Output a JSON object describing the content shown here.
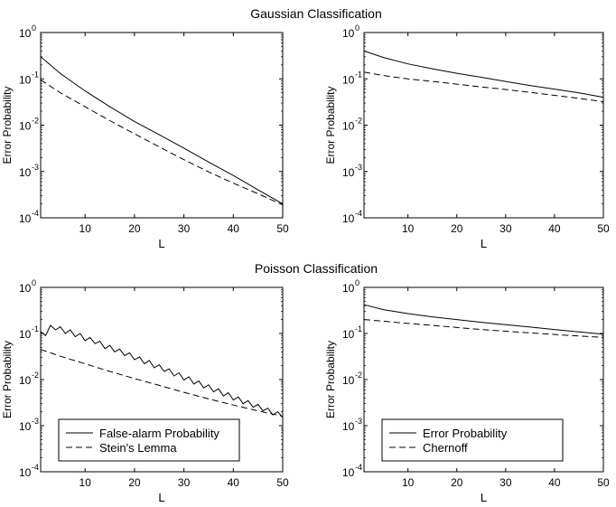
{
  "figure": {
    "titles": [
      "Gaussian Classification",
      "Poisson Classification"
    ]
  },
  "chart_data": [
    {
      "type": "line",
      "panel": "gaussian-left",
      "xlabel": "L",
      "ylabel": "Error Probability",
      "xlim": [
        1,
        50
      ],
      "ylim": [
        0.0001,
        1
      ],
      "yscale": "log",
      "xticks": [
        10,
        20,
        30,
        40,
        50
      ],
      "yticks": [
        {
          "base": "10",
          "exp": "0",
          "value": 1
        },
        {
          "base": "10",
          "exp": "-1",
          "value": 0.1
        },
        {
          "base": "10",
          "exp": "-2",
          "value": 0.01
        },
        {
          "base": "10",
          "exp": "-3",
          "value": 0.001
        },
        {
          "base": "10",
          "exp": "-4",
          "value": 0.0001
        }
      ],
      "legend": null,
      "series": [
        {
          "style": "solid",
          "x": [
            1,
            5,
            10,
            15,
            20,
            25,
            30,
            35,
            40,
            45,
            50
          ],
          "y": [
            0.3,
            0.13,
            0.055,
            0.025,
            0.012,
            0.0062,
            0.0032,
            0.0016,
            0.00082,
            0.0004,
            0.0002
          ]
        },
        {
          "style": "dashed",
          "x": [
            1,
            5,
            10,
            15,
            20,
            25,
            30,
            35,
            40,
            45,
            50
          ],
          "y": [
            0.095,
            0.05,
            0.025,
            0.0125,
            0.0065,
            0.0034,
            0.0018,
            0.00098,
            0.00056,
            0.00033,
            0.00019
          ]
        }
      ]
    },
    {
      "type": "line",
      "panel": "gaussian-right",
      "xlabel": "L",
      "ylabel": "Error Probability",
      "xlim": [
        1,
        50
      ],
      "ylim": [
        0.0001,
        1
      ],
      "yscale": "log",
      "xticks": [
        10,
        20,
        30,
        40,
        50
      ],
      "yticks": [
        {
          "base": "10",
          "exp": "0",
          "value": 1
        },
        {
          "base": "10",
          "exp": "-1",
          "value": 0.1
        },
        {
          "base": "10",
          "exp": "-2",
          "value": 0.01
        },
        {
          "base": "10",
          "exp": "-3",
          "value": 0.001
        },
        {
          "base": "10",
          "exp": "-4",
          "value": 0.0001
        }
      ],
      "legend": null,
      "series": [
        {
          "style": "solid",
          "x": [
            1,
            5,
            10,
            15,
            20,
            25,
            30,
            35,
            40,
            45,
            50
          ],
          "y": [
            0.4,
            0.29,
            0.21,
            0.165,
            0.132,
            0.108,
            0.088,
            0.072,
            0.06,
            0.05,
            0.04
          ]
        },
        {
          "style": "dashed",
          "x": [
            1,
            5,
            10,
            15,
            20,
            25,
            30,
            35,
            40,
            45,
            50
          ],
          "y": [
            0.14,
            0.118,
            0.1,
            0.088,
            0.077,
            0.067,
            0.059,
            0.051,
            0.044,
            0.038,
            0.032
          ]
        }
      ]
    },
    {
      "type": "line",
      "panel": "poisson-left",
      "xlabel": "L",
      "ylabel": "Error Probability",
      "xlim": [
        1,
        50
      ],
      "ylim": [
        0.0001,
        1
      ],
      "yscale": "log",
      "xticks": [
        10,
        20,
        30,
        40,
        50
      ],
      "yticks": [
        {
          "base": "10",
          "exp": "0",
          "value": 1
        },
        {
          "base": "10",
          "exp": "-1",
          "value": 0.1
        },
        {
          "base": "10",
          "exp": "-2",
          "value": 0.01
        },
        {
          "base": "10",
          "exp": "-3",
          "value": 0.001
        },
        {
          "base": "10",
          "exp": "-4",
          "value": 0.0001
        }
      ],
      "legend": {
        "position": "bottom-left",
        "entries": [
          {
            "label": "False-alarm Probability",
            "style": "solid"
          },
          {
            "label": "Stein's Lemma",
            "style": "dashed"
          }
        ]
      },
      "series": [
        {
          "name": "False-alarm Probability",
          "style": "solid",
          "x": [
            1,
            2,
            3,
            4,
            5,
            6,
            7,
            8,
            9,
            10,
            11,
            12,
            13,
            14,
            15,
            16,
            17,
            18,
            19,
            20,
            21,
            22,
            23,
            24,
            25,
            26,
            27,
            28,
            29,
            30,
            31,
            32,
            33,
            34,
            35,
            36,
            37,
            38,
            39,
            40,
            41,
            42,
            43,
            44,
            45,
            46,
            47,
            48,
            49,
            50
          ],
          "y": [
            0.11,
            0.09,
            0.15,
            0.12,
            0.14,
            0.1,
            0.12,
            0.085,
            0.1,
            0.07,
            0.082,
            0.06,
            0.068,
            0.047,
            0.055,
            0.04,
            0.046,
            0.033,
            0.038,
            0.027,
            0.031,
            0.022,
            0.026,
            0.018,
            0.021,
            0.015,
            0.017,
            0.012,
            0.014,
            0.0098,
            0.0115,
            0.008,
            0.0094,
            0.0066,
            0.0077,
            0.0054,
            0.0063,
            0.0044,
            0.0052,
            0.0036,
            0.0042,
            0.003,
            0.0035,
            0.0025,
            0.0029,
            0.0021,
            0.0024,
            0.0017,
            0.002,
            0.0015
          ]
        },
        {
          "name": "Stein's Lemma",
          "style": "dashed",
          "x": [
            1,
            5,
            10,
            15,
            20,
            25,
            30,
            35,
            40,
            45,
            50
          ],
          "y": [
            0.045,
            0.032,
            0.022,
            0.015,
            0.0105,
            0.0075,
            0.0053,
            0.0038,
            0.0028,
            0.0021,
            0.0016
          ]
        }
      ]
    },
    {
      "type": "line",
      "panel": "poisson-right",
      "xlabel": "L",
      "ylabel": "Error Probability",
      "xlim": [
        1,
        50
      ],
      "ylim": [
        0.0001,
        1
      ],
      "yscale": "log",
      "xticks": [
        10,
        20,
        30,
        40,
        50
      ],
      "yticks": [
        {
          "base": "10",
          "exp": "0",
          "value": 1
        },
        {
          "base": "10",
          "exp": "-1",
          "value": 0.1
        },
        {
          "base": "10",
          "exp": "-2",
          "value": 0.01
        },
        {
          "base": "10",
          "exp": "-3",
          "value": 0.001
        },
        {
          "base": "10",
          "exp": "-4",
          "value": 0.0001
        }
      ],
      "legend": {
        "position": "bottom-left",
        "entries": [
          {
            "label": "Error Probability",
            "style": "solid"
          },
          {
            "label": "Chernoff",
            "style": "dashed"
          }
        ]
      },
      "series": [
        {
          "name": "Error Probability",
          "style": "solid",
          "x": [
            1,
            5,
            10,
            15,
            20,
            25,
            30,
            35,
            40,
            45,
            50
          ],
          "y": [
            0.42,
            0.33,
            0.27,
            0.23,
            0.2,
            0.175,
            0.155,
            0.138,
            0.122,
            0.108,
            0.097
          ]
        },
        {
          "name": "Chernoff",
          "style": "dashed",
          "x": [
            1,
            5,
            10,
            15,
            20,
            25,
            30,
            35,
            40,
            45,
            50
          ],
          "y": [
            0.2,
            0.185,
            0.165,
            0.15,
            0.135,
            0.122,
            0.112,
            0.103,
            0.095,
            0.088,
            0.082
          ]
        }
      ]
    }
  ]
}
